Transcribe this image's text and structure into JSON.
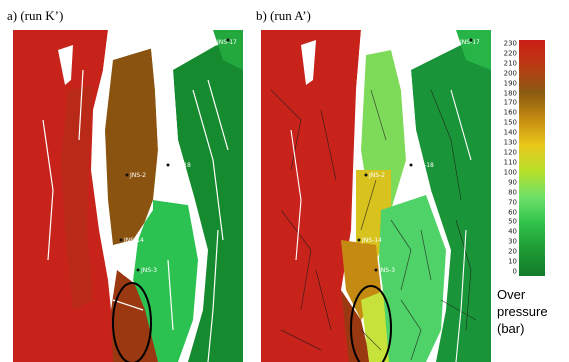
{
  "panels": {
    "a_title": "a) (run K’)",
    "b_title": "b) (run A’)"
  },
  "wells": {
    "a": [
      "JNS-2",
      "JNS-18",
      "JNS-14",
      "JNS-3",
      "JNS-17"
    ],
    "b": [
      "JNS-2",
      "JNS-18",
      "JNS-14",
      "JNS-3",
      "JNS-17"
    ]
  },
  "legend": {
    "ticks": [
      "230",
      "220",
      "210",
      "200",
      "190",
      "180",
      "170",
      "160",
      "150",
      "140",
      "130",
      "120",
      "110",
      "100",
      "90",
      "80",
      "70",
      "60",
      "50",
      "40",
      "30",
      "20",
      "10",
      "0"
    ],
    "caption_line1": "Over",
    "caption_line2": "pressure",
    "caption_line3": "(bar)",
    "colors": [
      "#cc1f16",
      "#b83a12",
      "#8a5a10",
      "#c48a12",
      "#e9c81a",
      "#b8e02a",
      "#6ee06a",
      "#2fc24a",
      "#1e9a34",
      "#137a28"
    ]
  }
}
